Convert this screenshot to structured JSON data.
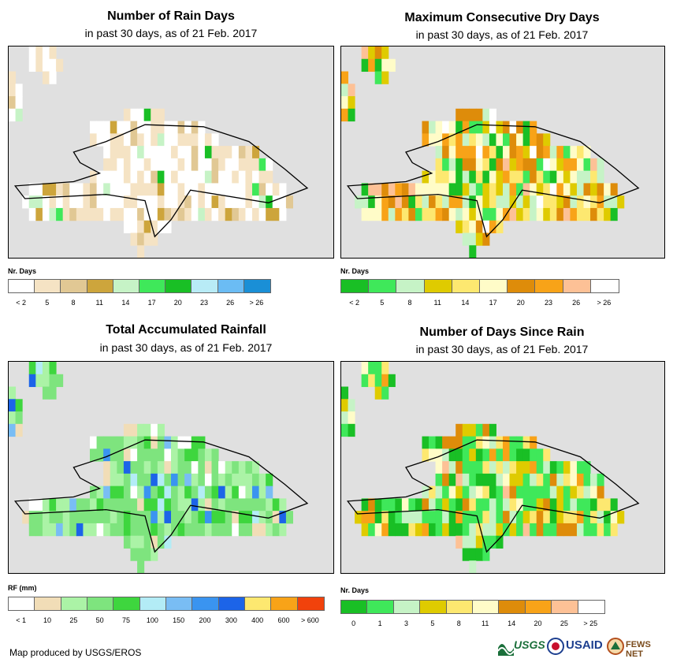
{
  "panels": [
    {
      "title": "Number of Rain Days",
      "subtitle": "in past 30 days, as of 21 Feb. 2017",
      "legend": {
        "title": "Nr. Days",
        "ticks": [
          "< 2",
          "5",
          "8",
          "11",
          "14",
          "17",
          "20",
          "23",
          "26",
          "> 26"
        ],
        "colors": [
          "#ffffff",
          "#f5e3c4",
          "#e1c894",
          "#cda53c",
          "#c6f3c6",
          "#3fe85a",
          "#19bf25",
          "#b8ebf6",
          "#6bbcf4",
          "#1a8fd6"
        ]
      }
    },
    {
      "title": "Maximum Consecutive Dry Days",
      "subtitle": "in past 30 days, as of 21 Feb. 2017",
      "legend": {
        "title": "Nr. Days",
        "ticks": [
          "< 2",
          "5",
          "8",
          "11",
          "14",
          "17",
          "20",
          "23",
          "26",
          "> 26"
        ],
        "colors": [
          "#19bf25",
          "#3fe85a",
          "#c6f3c6",
          "#dfcb00",
          "#fde870",
          "#fffcc8",
          "#de8c0a",
          "#f8a318",
          "#fdc196",
          "#ffffff"
        ]
      }
    },
    {
      "title": "Total Accumulated Rainfall",
      "subtitle": "in past 30 days, as of 21 Feb. 2017",
      "legend": {
        "title": "RF (mm)",
        "ticks": [
          "< 1",
          "10",
          "25",
          "50",
          "75",
          "100",
          "150",
          "200",
          "300",
          "400",
          "600",
          "> 600"
        ],
        "colors": [
          "#ffffff",
          "#f1ddb7",
          "#abf3a6",
          "#7ee47e",
          "#3ed63e",
          "#b3ecf6",
          "#79bdf4",
          "#3a94f0",
          "#1c64e8",
          "#fde870",
          "#f8a318",
          "#f1420c"
        ]
      }
    },
    {
      "title": "Number of Days Since Rain",
      "subtitle": "in past 30 days, as of 21 Feb. 2017",
      "legend": {
        "title": "Nr. Days",
        "ticks": [
          "0",
          "1",
          "3",
          "5",
          "8",
          "11",
          "14",
          "20",
          "25",
          "> 25"
        ],
        "colors": [
          "#19bf25",
          "#3fe85a",
          "#c6f3c6",
          "#dfcb00",
          "#fde870",
          "#fffcc8",
          "#de8c0a",
          "#f8a318",
          "#fdc196",
          "#ffffff"
        ]
      }
    }
  ],
  "map": {
    "background": "#e0e0e0",
    "grid": [
      [
        1,
        1,
        1,
        0,
        0,
        0,
        0,
        1,
        1,
        1,
        1,
        1,
        1,
        1,
        1,
        1,
        1,
        1,
        1,
        1,
        1,
        1,
        1,
        1,
        1,
        1,
        1,
        1,
        1,
        1,
        1,
        1,
        1,
        1,
        1,
        1,
        1,
        1,
        1,
        1,
        1,
        1,
        1,
        1,
        1,
        1,
        1,
        1
      ],
      [
        1,
        1,
        1,
        0,
        0,
        0,
        0,
        0,
        1,
        1,
        1,
        1,
        1,
        1,
        1,
        1,
        1,
        1,
        1,
        1,
        1,
        1,
        1,
        1,
        1,
        1,
        1,
        1,
        1,
        1,
        1,
        1,
        1,
        1,
        1,
        1,
        1,
        1,
        1,
        1,
        1,
        1,
        1,
        1,
        1,
        1,
        1,
        1
      ],
      [
        0,
        1,
        1,
        1,
        1,
        0,
        0,
        1,
        1,
        1,
        1,
        1,
        1,
        1,
        1,
        1,
        1,
        1,
        1,
        1,
        1,
        1,
        1,
        1,
        1,
        1,
        1,
        1,
        1,
        1,
        1,
        1,
        1,
        1,
        1,
        1,
        1,
        1,
        1,
        1,
        1,
        1,
        1,
        1,
        1,
        1,
        1,
        1
      ],
      [
        0,
        0,
        1,
        1,
        1,
        1,
        1,
        1,
        1,
        1,
        1,
        1,
        1,
        1,
        1,
        1,
        1,
        1,
        1,
        1,
        1,
        1,
        1,
        1,
        1,
        1,
        1,
        1,
        1,
        1,
        1,
        1,
        1,
        1,
        1,
        1,
        1,
        1,
        1,
        1,
        1,
        1,
        1,
        1,
        1,
        1,
        1,
        1
      ],
      [
        0,
        0,
        1,
        1,
        1,
        1,
        1,
        1,
        1,
        1,
        1,
        1,
        1,
        1,
        1,
        1,
        1,
        1,
        1,
        1,
        1,
        1,
        1,
        1,
        1,
        1,
        1,
        1,
        1,
        1,
        1,
        1,
        1,
        1,
        1,
        1,
        1,
        1,
        1,
        1,
        1,
        1,
        1,
        1,
        1,
        1,
        1,
        1
      ],
      [
        0,
        0,
        1,
        1,
        1,
        1,
        1,
        1,
        1,
        1,
        1,
        1,
        1,
        1,
        1,
        1,
        1,
        0,
        0,
        0,
        0,
        0,
        0,
        1,
        1,
        1,
        1,
        1,
        1,
        1,
        1,
        1,
        1,
        1,
        1,
        1,
        1,
        1,
        1,
        1,
        1,
        1,
        1,
        1,
        1,
        1,
        1,
        1
      ],
      [
        1,
        1,
        1,
        1,
        1,
        1,
        1,
        1,
        1,
        1,
        1,
        1,
        0,
        0,
        0,
        0,
        0,
        0,
        0,
        0,
        0,
        0,
        0,
        0,
        0,
        0,
        0,
        0,
        0,
        1,
        1,
        1,
        1,
        1,
        1,
        1,
        1,
        1,
        1,
        1,
        1,
        1,
        1,
        1,
        1,
        1,
        1,
        1
      ],
      [
        1,
        1,
        1,
        1,
        1,
        1,
        1,
        1,
        1,
        1,
        1,
        1,
        0,
        0,
        0,
        0,
        0,
        0,
        0,
        0,
        0,
        0,
        0,
        0,
        0,
        0,
        0,
        0,
        0,
        0,
        0,
        1,
        1,
        1,
        1,
        1,
        1,
        1,
        1,
        1,
        1,
        1,
        1,
        1,
        1,
        1,
        1,
        1
      ],
      [
        1,
        1,
        1,
        1,
        1,
        1,
        1,
        1,
        1,
        1,
        1,
        1,
        1,
        1,
        0,
        0,
        0,
        0,
        0,
        0,
        0,
        0,
        0,
        0,
        0,
        0,
        0,
        0,
        0,
        0,
        0,
        0,
        0,
        0,
        0,
        0,
        0,
        1,
        1,
        1,
        1,
        1,
        1,
        1,
        1,
        1,
        1,
        1
      ],
      [
        1,
        1,
        1,
        1,
        1,
        1,
        1,
        1,
        1,
        1,
        1,
        1,
        1,
        1,
        0,
        0,
        0,
        0,
        0,
        0,
        0,
        0,
        0,
        0,
        0,
        0,
        0,
        0,
        0,
        0,
        0,
        0,
        0,
        0,
        0,
        0,
        0,
        0,
        0,
        1,
        1,
        1,
        1,
        1,
        1,
        1,
        1,
        1
      ],
      [
        1,
        1,
        1,
        1,
        1,
        1,
        1,
        1,
        1,
        1,
        1,
        1,
        0,
        0,
        0,
        0,
        0,
        0,
        0,
        0,
        0,
        0,
        0,
        0,
        0,
        0,
        0,
        0,
        0,
        0,
        0,
        0,
        0,
        0,
        0,
        0,
        0,
        0,
        0,
        1,
        1,
        1,
        1,
        1,
        1,
        1,
        1,
        1
      ],
      [
        1,
        1,
        1,
        0,
        0,
        0,
        0,
        0,
        0,
        0,
        0,
        0,
        0,
        0,
        0,
        0,
        0,
        0,
        0,
        0,
        0,
        0,
        0,
        0,
        0,
        0,
        0,
        0,
        0,
        0,
        0,
        0,
        0,
        0,
        0,
        0,
        0,
        0,
        0,
        0,
        0,
        1,
        1,
        1,
        1,
        1,
        1,
        1
      ],
      [
        1,
        1,
        0,
        0,
        0,
        0,
        0,
        0,
        0,
        0,
        0,
        0,
        0,
        0,
        0,
        0,
        0,
        0,
        0,
        0,
        0,
        0,
        0,
        0,
        0,
        0,
        0,
        0,
        0,
        0,
        0,
        0,
        0,
        0,
        0,
        0,
        0,
        0,
        0,
        0,
        0,
        0,
        1,
        1,
        1,
        1,
        1,
        1
      ],
      [
        1,
        1,
        1,
        0,
        0,
        0,
        0,
        0,
        0,
        0,
        0,
        0,
        0,
        0,
        0,
        0,
        0,
        0,
        0,
        0,
        0,
        0,
        0,
        0,
        0,
        0,
        0,
        0,
        0,
        0,
        0,
        0,
        0,
        0,
        0,
        0,
        0,
        0,
        0,
        0,
        0,
        1,
        1,
        1,
        1,
        1,
        1,
        1
      ],
      [
        1,
        1,
        1,
        1,
        1,
        1,
        1,
        1,
        1,
        1,
        1,
        1,
        1,
        1,
        1,
        1,
        1,
        0,
        0,
        0,
        0,
        0,
        0,
        0,
        1,
        1,
        1,
        1,
        1,
        1,
        1,
        1,
        1,
        1,
        1,
        1,
        1,
        1,
        1,
        1,
        1,
        1,
        1,
        1,
        1,
        1,
        1,
        1
      ],
      [
        1,
        1,
        1,
        1,
        1,
        1,
        1,
        1,
        1,
        1,
        1,
        1,
        1,
        1,
        1,
        1,
        1,
        1,
        0,
        0,
        0,
        0,
        1,
        1,
        1,
        1,
        1,
        1,
        1,
        1,
        1,
        1,
        1,
        1,
        1,
        1,
        1,
        1,
        1,
        1,
        1,
        1,
        1,
        1,
        1,
        1,
        1,
        1
      ],
      [
        1,
        1,
        1,
        1,
        1,
        1,
        1,
        1,
        1,
        1,
        1,
        1,
        1,
        1,
        1,
        1,
        1,
        1,
        1,
        0,
        1,
        1,
        1,
        1,
        1,
        1,
        1,
        1,
        1,
        1,
        1,
        1,
        1,
        1,
        1,
        1,
        1,
        1,
        1,
        1,
        1,
        1,
        1,
        1,
        1,
        1,
        1,
        1
      ]
    ]
  },
  "footer": {
    "credit": "Map produced by USGS/EROS"
  },
  "logos": [
    {
      "name": "USGS",
      "text": "USGS",
      "color": "#1a6f3a"
    },
    {
      "name": "USAID",
      "text": "USAID",
      "color": "#1d3f8f"
    },
    {
      "name": "FEWS NET",
      "text": "FEWS NET",
      "color": "#7a4b1c"
    }
  ]
}
